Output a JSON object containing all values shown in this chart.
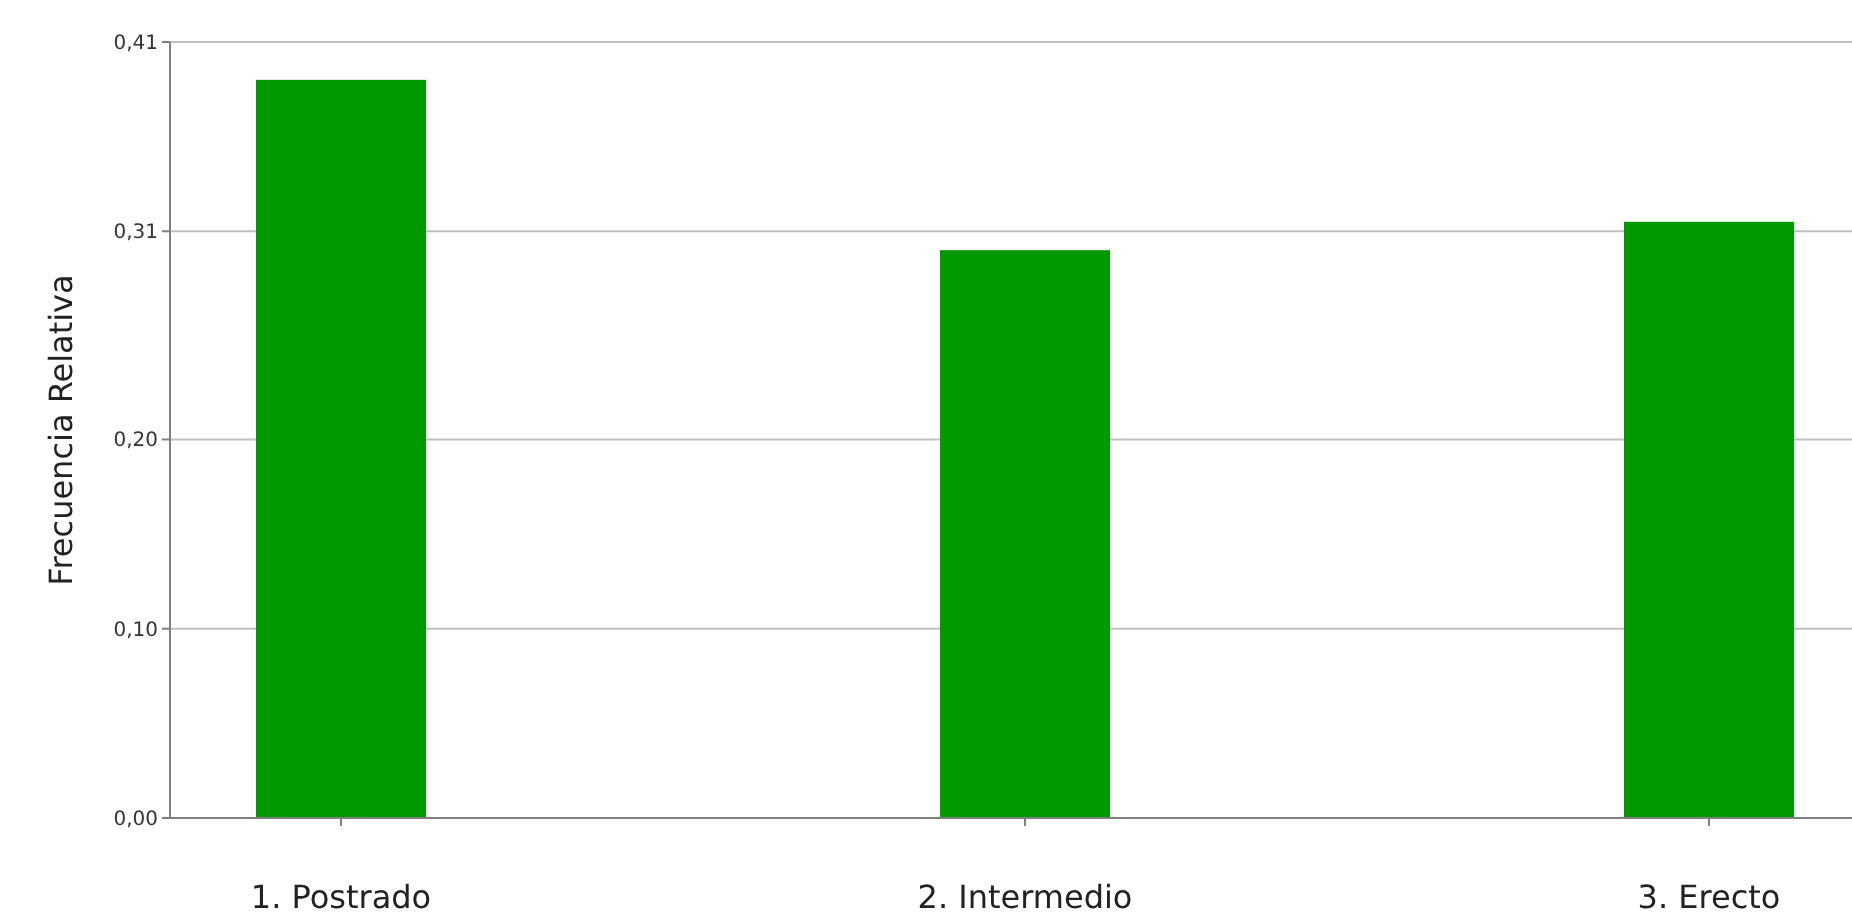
{
  "chart_data": {
    "type": "bar",
    "ylabel": "Frecuencia Relativa",
    "categories": [
      "1. Postrado",
      "2. Intermedio",
      "3. Erecto"
    ],
    "values": [
      0.39,
      0.3,
      0.315
    ],
    "color": "#009900",
    "ylim": [
      0,
      0.41
    ],
    "yticks": [
      {
        "value": 0,
        "label": "0,00"
      },
      {
        "value": 0.1,
        "label": "0,10"
      },
      {
        "value": 0.2,
        "label": "0,20"
      },
      {
        "value": 0.31,
        "label": "0,31"
      },
      {
        "value": 0.41,
        "label": "0,41"
      }
    ],
    "grid": "y"
  }
}
